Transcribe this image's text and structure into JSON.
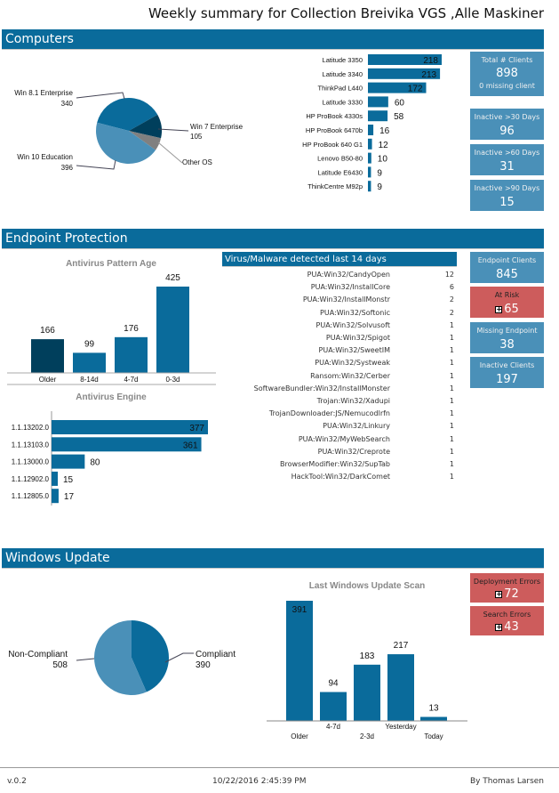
{
  "title": "Weekly summary for Collection Breivika VGS ,Alle Maskiner",
  "colors": {
    "header": "#0a6b9b",
    "kpi": "#4a90b8",
    "alert": "#cd5c5c",
    "bar": "#0a6b9b",
    "dark": "#003f5c",
    "light": "#4a90b8",
    "gray": "#808080"
  },
  "sections": {
    "computers": "Computers",
    "endpoint": "Endpoint Protection",
    "windows_update": "Windows Update"
  },
  "computers": {
    "kpis": [
      {
        "label": "Total # Clients",
        "value": "898",
        "sub": "0 missing client"
      },
      {
        "label": "Inactive >30 Days",
        "value": "96"
      },
      {
        "label": "Inactive >60 Days",
        "value": "31"
      },
      {
        "label": "Inactive >90 Days",
        "value": "15"
      }
    ]
  },
  "endpoint": {
    "virus_header": "Virus/Malware detected last 14 days",
    "virus_list": [
      {
        "name": "PUA:Win32/CandyOpen",
        "count": "12"
      },
      {
        "name": "PUA:Win32/InstallCore",
        "count": "6"
      },
      {
        "name": "PUA:Win32/InstallMonstr",
        "count": "2"
      },
      {
        "name": "PUA:Win32/Softonic",
        "count": "2"
      },
      {
        "name": "PUA:Win32/Solvusoft",
        "count": "1"
      },
      {
        "name": "PUA:Win32/Spigot",
        "count": "1"
      },
      {
        "name": "PUA:Win32/SweetIM",
        "count": "1"
      },
      {
        "name": "PUA:Win32/Systweak",
        "count": "1"
      },
      {
        "name": "Ransom:Win32/Cerber",
        "count": "1"
      },
      {
        "name": "SoftwareBundler:Win32/InstallMonster",
        "count": "1"
      },
      {
        "name": "Trojan:Win32/Xadupi",
        "count": "1"
      },
      {
        "name": "TrojanDownloader:JS/Nemucodlrfn",
        "count": "1"
      },
      {
        "name": "PUA:Win32/Linkury",
        "count": "1"
      },
      {
        "name": "PUA:Win32/MyWebSearch",
        "count": "1"
      },
      {
        "name": "PUA:Win32/Creprote",
        "count": "1"
      },
      {
        "name": "BrowserModifier:Win32/SupTab",
        "count": "1"
      },
      {
        "name": "HackTool:Win32/DarkComet",
        "count": "1"
      }
    ],
    "kpis": [
      {
        "label": "Endpoint Clients",
        "value": "845",
        "alert": false
      },
      {
        "label": "At Risk",
        "value": "65",
        "alert": true
      },
      {
        "label": "Missing Endpoint",
        "value": "38",
        "alert": false
      },
      {
        "label": "Inactive Clients",
        "value": "197",
        "alert": false
      }
    ]
  },
  "windows_update": {
    "kpis": [
      {
        "label": "Deployment Errors",
        "value": "72"
      },
      {
        "label": "Search Errors",
        "value": "43"
      }
    ]
  },
  "footer": {
    "version": "v.0.2",
    "timestamp": "10/22/2016 2:45:39 PM",
    "author": "By Thomas Larsen"
  },
  "chart_data": [
    {
      "type": "pie",
      "labels": [
        "Win 8.1 Enterprise",
        "Win 7 Enterprise",
        "Other OS",
        "Win 10 Education"
      ],
      "values": [
        340,
        105,
        57,
        396
      ],
      "value_labels": [
        "340",
        "105",
        "",
        "396"
      ]
    },
    {
      "type": "bar",
      "orientation": "horizontal",
      "categories": [
        "Latitude 3350",
        "Latitude 3340",
        "ThinkPad L440",
        "Latitude 3330",
        "HP ProBook 4330s",
        "HP ProBook 6470b",
        "HP ProBook 640 G1",
        "Lenovo B50-80",
        "Latitude E6430",
        "ThinkCentre M92p"
      ],
      "values": [
        218,
        213,
        172,
        60,
        58,
        16,
        12,
        10,
        9,
        9
      ]
    },
    {
      "type": "bar",
      "title": "Antivirus Pattern Age",
      "categories": [
        "Older",
        "8-14d",
        "4-7d",
        "0-3d"
      ],
      "values": [
        166,
        99,
        176,
        425
      ]
    },
    {
      "type": "bar",
      "orientation": "horizontal",
      "title": "Antivirus Engine",
      "categories": [
        "1.1.13202.0",
        "1.1.13103.0",
        "1.1.13000.0",
        "1.1.12902.0",
        "1.1.12805.0"
      ],
      "values": [
        377,
        361,
        80,
        15,
        17
      ]
    },
    {
      "type": "pie",
      "labels": [
        "Compliant",
        "Non-Compliant"
      ],
      "values": [
        390,
        508
      ]
    },
    {
      "type": "bar",
      "title": "Last Windows Update Scan",
      "categories": [
        "Older",
        "4-7d",
        "2-3d",
        "Yesterday",
        "Today"
      ],
      "values": [
        391,
        94,
        183,
        217,
        13
      ]
    }
  ]
}
